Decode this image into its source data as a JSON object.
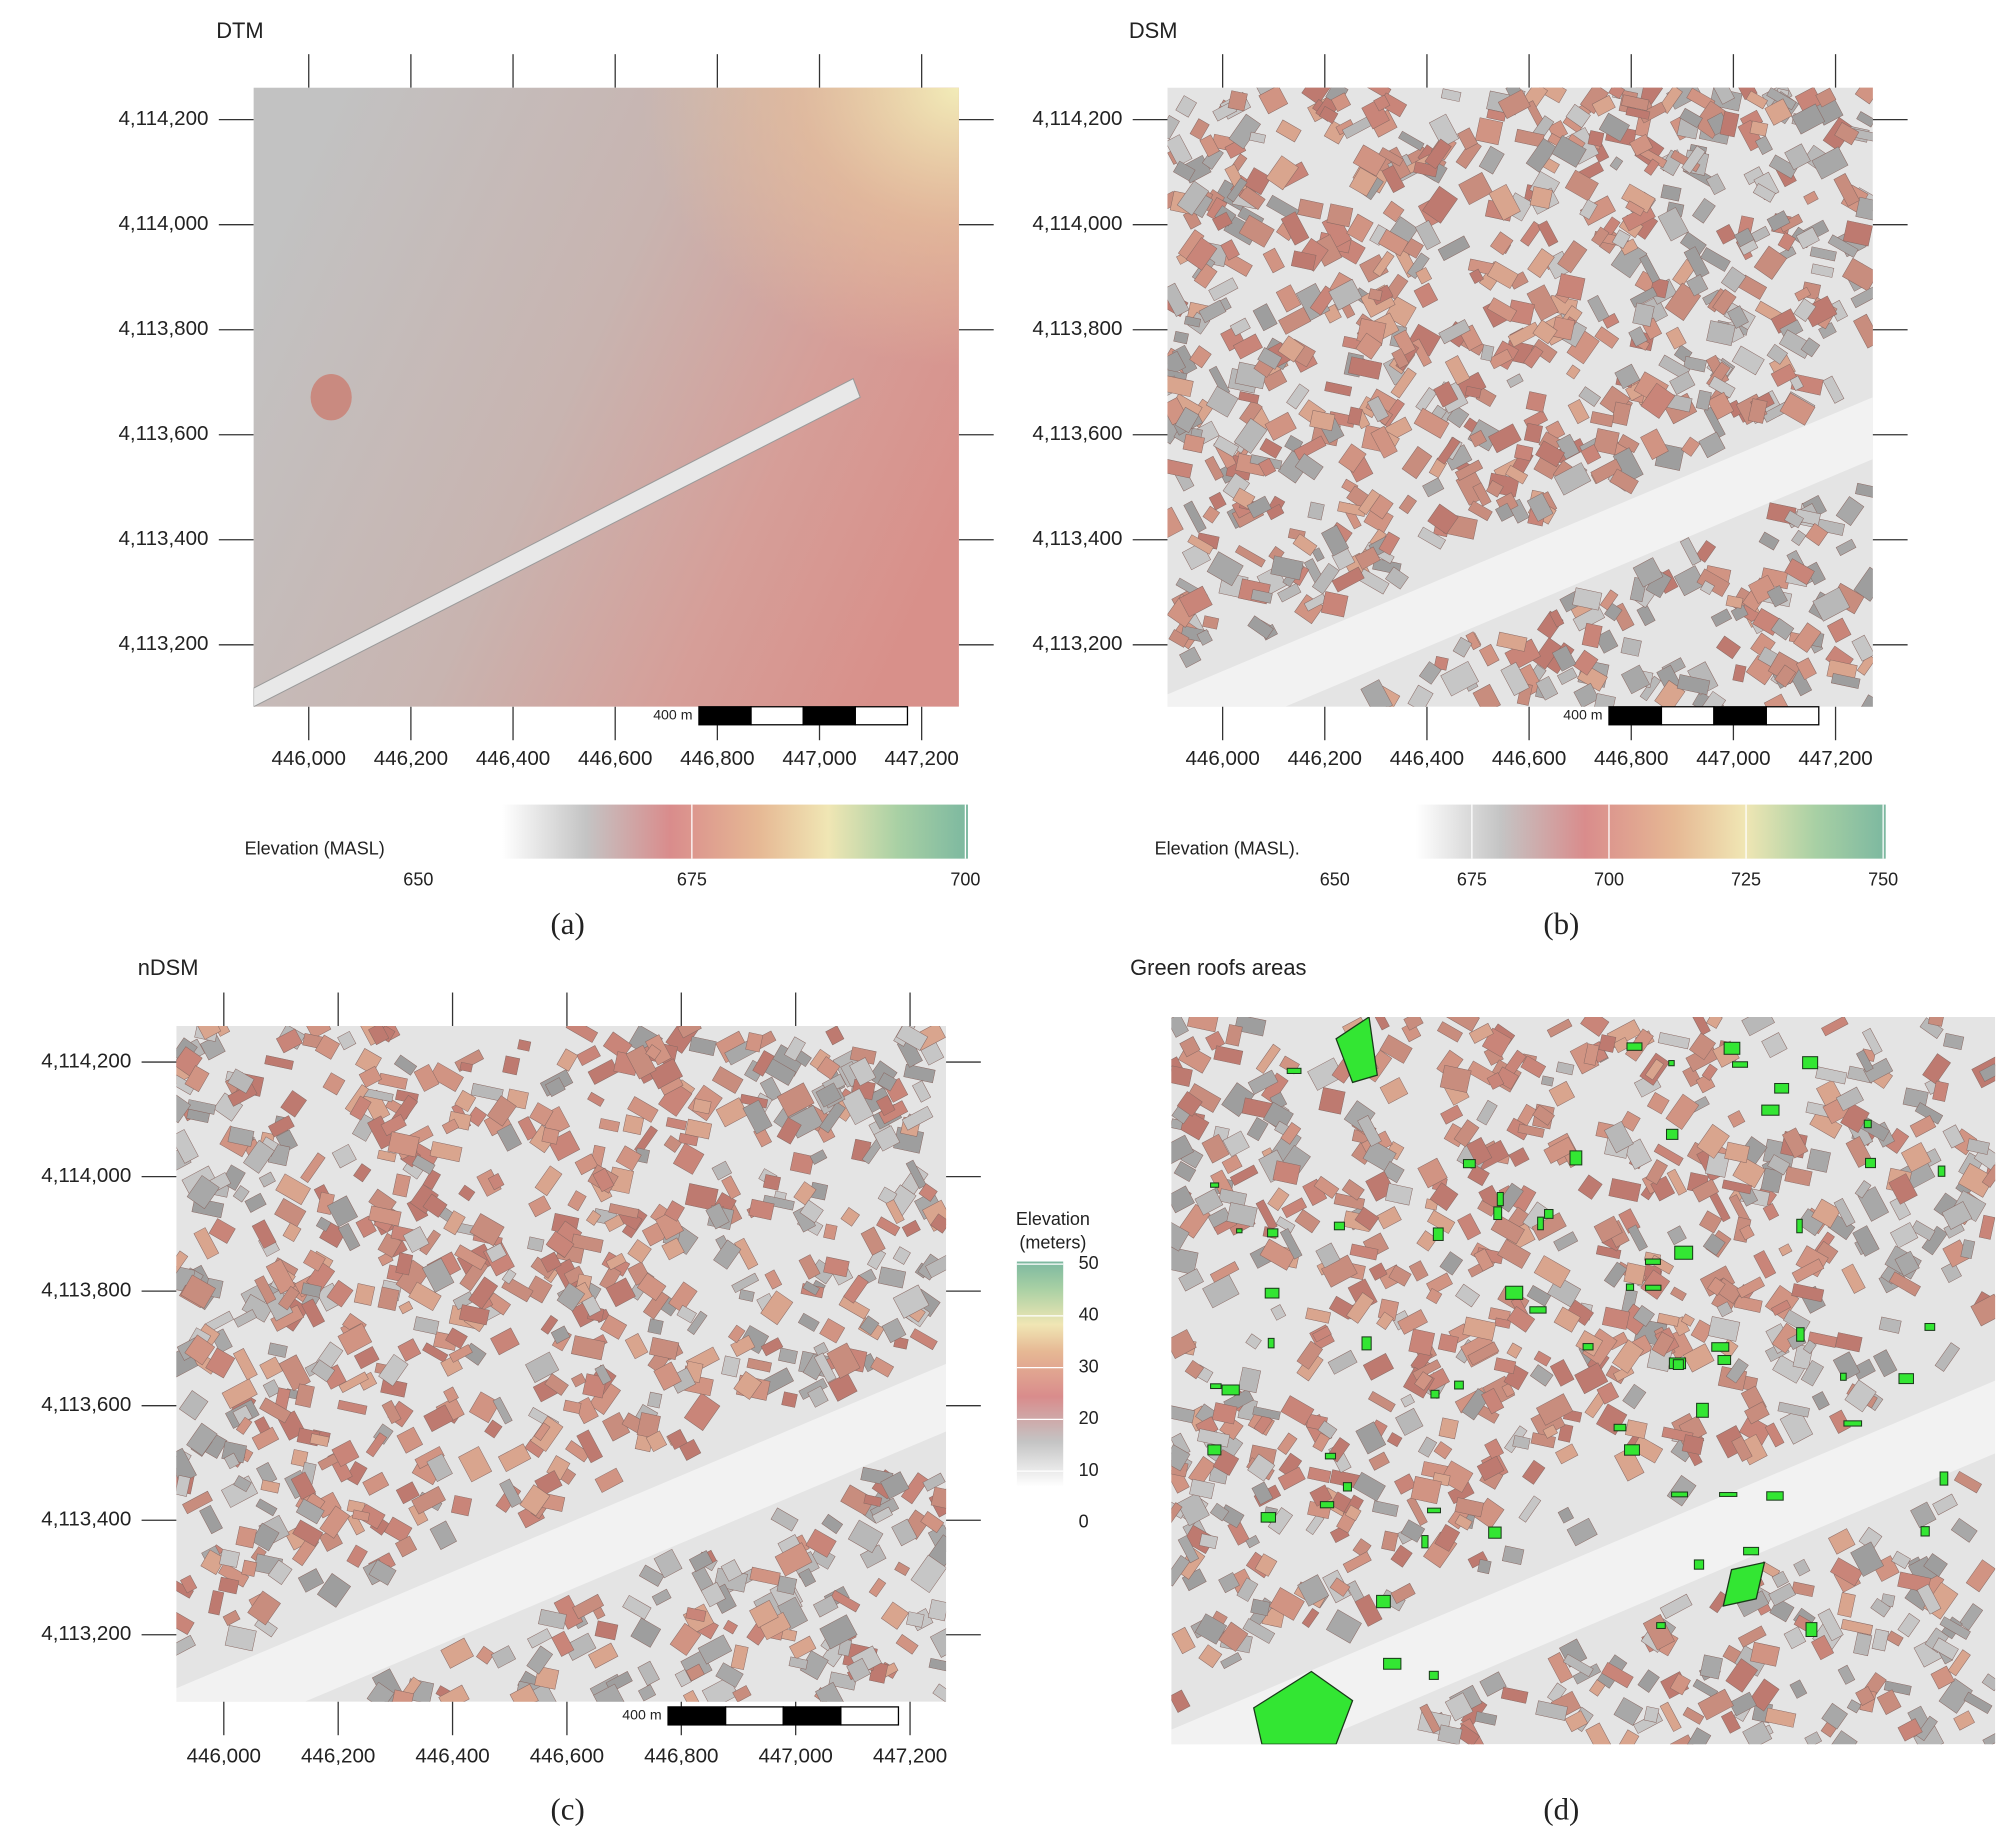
{
  "panels": [
    {
      "title": "DTM",
      "caption": "(a)",
      "xlim": [
        445892,
        447273
      ],
      "ylim": [
        4113082,
        4114261
      ],
      "xticks": [
        {
          "value": 446000,
          "label": "446,000"
        },
        {
          "value": 446200,
          "label": "446,200"
        },
        {
          "value": 446400,
          "label": "446,400"
        },
        {
          "value": 446600,
          "label": "446,600"
        },
        {
          "value": 446800,
          "label": "446,800"
        },
        {
          "value": 447000,
          "label": "447,000"
        },
        {
          "value": 447200,
          "label": "447,200"
        }
      ],
      "yticks": [
        {
          "value": 4113200,
          "label": "4,113,200"
        },
        {
          "value": 4113400,
          "label": "4,113,400"
        },
        {
          "value": 4113600,
          "label": "4,113,600"
        },
        {
          "value": 4113800,
          "label": "4,113,800"
        },
        {
          "value": 4114000,
          "label": "4,114,000"
        },
        {
          "value": 4114200,
          "label": "4,114,200"
        }
      ],
      "scale_bar": "400 m",
      "legend": {
        "title": "Elevation (MASL)",
        "ticks": [
          650,
          675,
          700
        ]
      }
    },
    {
      "title": "DSM",
      "caption": "(b)",
      "xlim": [
        445892,
        447273
      ],
      "ylim": [
        4113082,
        4114261
      ],
      "xticks": [
        {
          "value": 446000,
          "label": "446,000"
        },
        {
          "value": 446200,
          "label": "446,200"
        },
        {
          "value": 446400,
          "label": "446,400"
        },
        {
          "value": 446600,
          "label": "446,600"
        },
        {
          "value": 446800,
          "label": "446,800"
        },
        {
          "value": 447000,
          "label": "447,000"
        },
        {
          "value": 447200,
          "label": "447,200"
        }
      ],
      "yticks": [
        {
          "value": 4113200,
          "label": "4,113,200"
        },
        {
          "value": 4113400,
          "label": "4,113,400"
        },
        {
          "value": 4113600,
          "label": "4,113,600"
        },
        {
          "value": 4113800,
          "label": "4,113,800"
        },
        {
          "value": 4114000,
          "label": "4,114,000"
        },
        {
          "value": 4114200,
          "label": "4,114,200"
        }
      ],
      "scale_bar": "400 m",
      "legend": {
        "title": "Elevation (MASL).",
        "ticks": [
          650,
          675,
          700,
          725,
          750
        ]
      }
    },
    {
      "title": "nDSM",
      "caption": "(c)",
      "xlim": [
        445917,
        447263
      ],
      "ylim": [
        4113083,
        4114263
      ],
      "xticks": [
        {
          "value": 446000,
          "label": "446,000"
        },
        {
          "value": 446200,
          "label": "446,200"
        },
        {
          "value": 446400,
          "label": "446,400"
        },
        {
          "value": 446600,
          "label": "446,600"
        },
        {
          "value": 446800,
          "label": "446,800"
        },
        {
          "value": 447000,
          "label": "447,000"
        },
        {
          "value": 447200,
          "label": "447,200"
        }
      ],
      "yticks": [
        {
          "value": 4113200,
          "label": "4,113,200"
        },
        {
          "value": 4113400,
          "label": "4,113,400"
        },
        {
          "value": 4113600,
          "label": "4,113,600"
        },
        {
          "value": 4113800,
          "label": "4,113,800"
        },
        {
          "value": 4114000,
          "label": "4,114,000"
        },
        {
          "value": 4114200,
          "label": "4,114,200"
        }
      ],
      "scale_bar": "400 m",
      "legend": {
        "title_lines": [
          "Elevation",
          "(meters)"
        ],
        "ticks": [
          0,
          10,
          20,
          30,
          40,
          50
        ]
      }
    },
    {
      "title": "Green roofs areas",
      "caption": "(d)"
    }
  ]
}
